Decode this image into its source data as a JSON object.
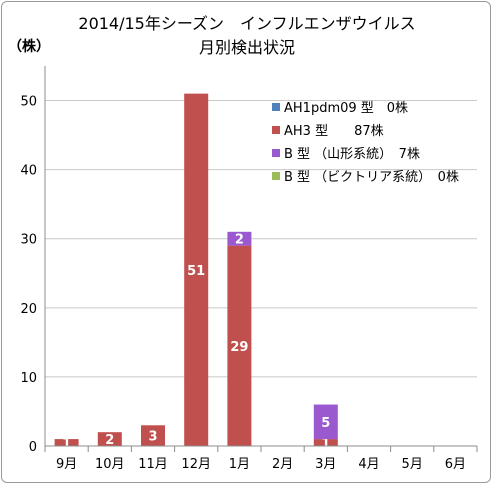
{
  "chart_data": {
    "type": "bar",
    "stacked": true,
    "title": "2014/15年シーズン　インフルエンザウイルス",
    "subtitle": "月別検出状況",
    "ylabel": "（株）",
    "xlabel": "",
    "categories": [
      "9月",
      "10月",
      "11月",
      "12月",
      "1月",
      "2月",
      "3月",
      "4月",
      "5月",
      "6月"
    ],
    "ylim": [
      0,
      55
    ],
    "yticks": [
      0,
      10,
      20,
      30,
      40,
      50
    ],
    "grid": true,
    "legend_position": "right",
    "series": [
      {
        "name": "AH1pdm09 型　0株",
        "color": "#4f81bd",
        "values": [
          0,
          0,
          0,
          0,
          0,
          0,
          0,
          0,
          0,
          0
        ]
      },
      {
        "name": "AH3 型　　87株",
        "color": "#c0504d",
        "values": [
          1,
          2,
          3,
          51,
          29,
          0,
          1,
          0,
          0,
          0
        ]
      },
      {
        "name": "B 型 （山形系統）　7株",
        "color": "#9b59d0",
        "values": [
          0,
          0,
          0,
          0,
          2,
          0,
          5,
          0,
          0,
          0
        ]
      },
      {
        "name": "B 型 （ビクトリア系統）　0株",
        "color": "#9bbb59",
        "values": [
          0,
          0,
          0,
          0,
          0,
          0,
          0,
          0,
          0,
          0
        ]
      }
    ]
  }
}
